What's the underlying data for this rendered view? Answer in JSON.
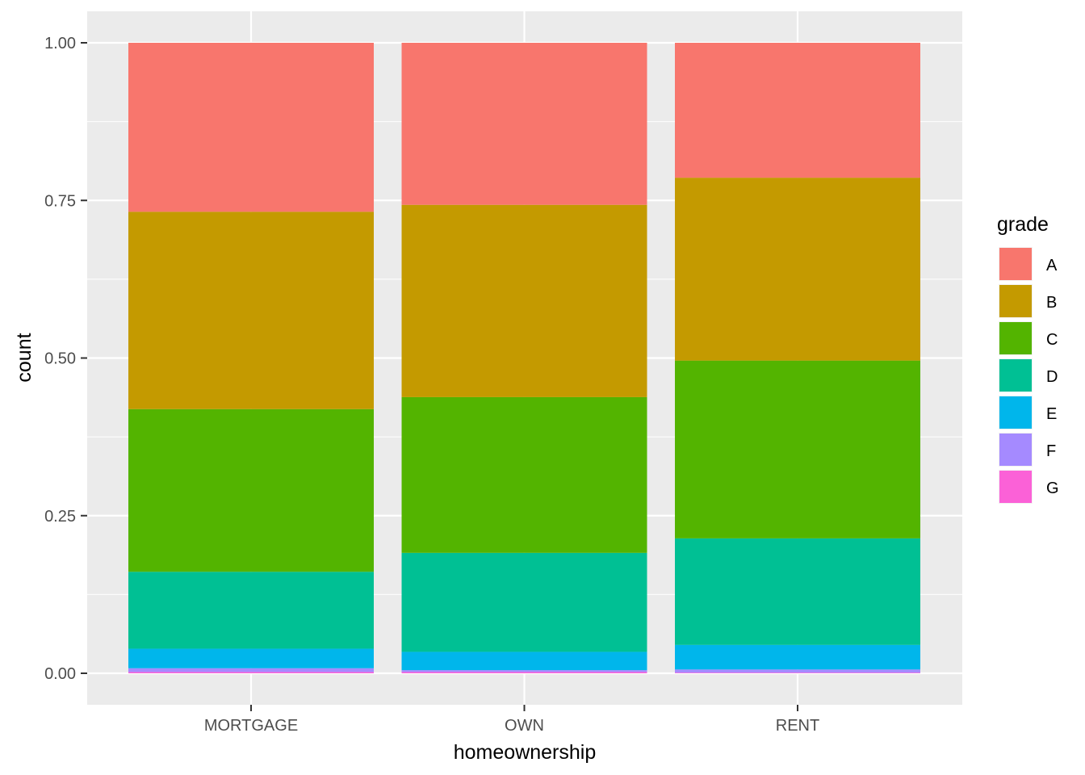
{
  "chart_data": {
    "type": "bar",
    "stacked": true,
    "position": "fill",
    "categories": [
      "MORTGAGE",
      "OWN",
      "RENT"
    ],
    "xlabel": "homeownership",
    "ylabel": "count",
    "ylim": [
      0,
      1
    ],
    "yticks": [
      "0.00",
      "0.25",
      "0.50",
      "0.75",
      "1.00"
    ],
    "grid": true,
    "legend": {
      "title": "grade",
      "placement": "right"
    },
    "series": [
      {
        "name": "A",
        "color": "#F8766D",
        "values": [
          0.268,
          0.257,
          0.214
        ]
      },
      {
        "name": "B",
        "color": "#C49A00",
        "values": [
          0.313,
          0.305,
          0.29
        ]
      },
      {
        "name": "C",
        "color": "#53B400",
        "values": [
          0.258,
          0.247,
          0.282
        ]
      },
      {
        "name": "D",
        "color": "#00C094",
        "values": [
          0.122,
          0.157,
          0.169
        ]
      },
      {
        "name": "E",
        "color": "#00B6EB",
        "values": [
          0.031,
          0.029,
          0.039
        ]
      },
      {
        "name": "F",
        "color": "#A58AFF",
        "values": [
          0.006,
          0.003,
          0.005
        ]
      },
      {
        "name": "G",
        "color": "#FB61D7",
        "values": [
          0.002,
          0.002,
          0.001
        ]
      }
    ]
  }
}
